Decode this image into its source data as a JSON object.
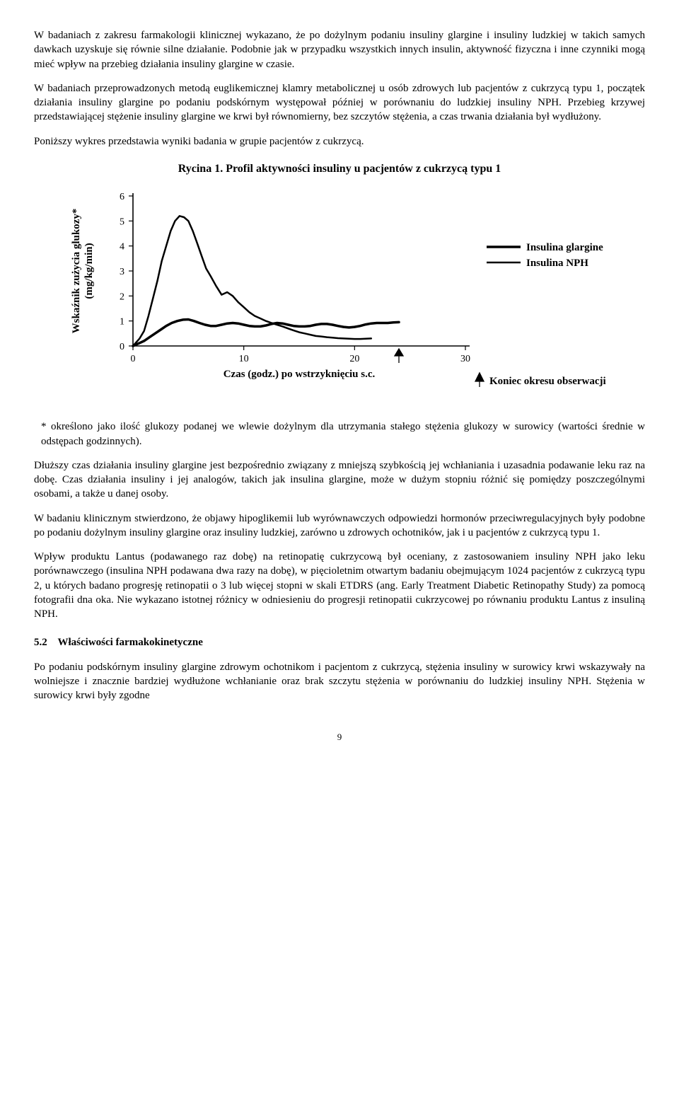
{
  "paragraphs": {
    "p1": "W badaniach z zakresu farmakologii klinicznej wykazano, że po dożylnym podaniu insuliny glargine i insuliny ludzkiej w takich samych dawkach uzyskuje się równie silne działanie. Podobnie jak w przypadku wszystkich innych insulin, aktywność fizyczna i inne czynniki mogą mieć wpływ na przebieg działania insuliny glargine w czasie.",
    "p2": "W badaniach przeprowadzonych metodą euglikemicznej klamry metabolicznej u osób zdrowych lub pacjentów z cukrzycą typu 1, początek działania insuliny glargine po podaniu podskórnym występował później w porównaniu do ludzkiej insuliny NPH. Przebieg krzywej przedstawiającej stężenie insuliny glargine we krwi był równomierny, bez szczytów stężenia, a czas trwania działania był wydłużony.",
    "p3": "Poniższy wykres przedstawia wyniki badania w grupie pacjentów z cukrzycą.",
    "p4": "* określono jako ilość glukozy podanej we wlewie dożylnym dla utrzymania stałego stężenia glukozy w surowicy (wartości średnie w odstępach godzinnych).",
    "p5": "Dłuższy czas działania insuliny glargine jest bezpośrednio związany z mniejszą szybkością jej wchłaniania i uzasadnia podawanie leku raz na dobę. Czas działania insuliny i jej analogów, takich jak insulina glargine, może w dużym stopniu różnić się pomiędzy poszczególnymi osobami, a także u danej osoby.",
    "p6": "W badaniu klinicznym stwierdzono, że objawy hipoglikemii lub wyrównawczych odpowiedzi hormonów przeciwregulacyjnych były podobne po podaniu dożylnym insuliny glargine oraz insuliny ludzkiej, zarówno u zdrowych ochotników, jak i u pacjentów z cukrzycą typu 1.",
    "p7": "Wpływ produktu Lantus (podawanego raz dobę) na retinopatię cukrzycową był oceniany, z zastosowaniem insuliny NPH jako leku porównawczego (insulina NPH podawana dwa razy na dobę), w pięcioletnim otwartym badaniu obejmującym 1024 pacjentów z cukrzycą typu 2, u których badano progresję retinopatii o 3 lub więcej stopni w skali ETDRS (ang. Early Treatment Diabetic Retinopathy Study) za pomocą fotografii dna oka. Nie wykazano istotnej różnicy w odniesieniu do progresji retinopatii cukrzycowej po równaniu produktu Lantus z insuliną NPH.",
    "p8": "Po podaniu podskórnym insuliny glargine zdrowym ochotnikom i pacjentom z cukrzycą, stężenia insuliny w surowicy krwi wskazywały na wolniejsze i znacznie bardziej wydłużone wchłanianie oraz brak szczytu stężenia w porównaniu do ludzkiej insuliny NPH. Stężenia w surowicy krwi były zgodne"
  },
  "chart": {
    "title": "Rycina 1. Profil aktywności insuliny u pacjentów z cukrzycą typu 1",
    "type": "line",
    "y_label": "Wskaźnik zużycia glukozy*\n(mg/kg/min)",
    "x_label": "Czas (godz.) po wstrzyknięciu s.c.",
    "legend": {
      "glargine": "Insulina glargine",
      "nph": "Insulina NPH"
    },
    "footer_marker": "Koniec okresu obserwacji",
    "xlim": [
      0,
      30
    ],
    "ylim": [
      0,
      6
    ],
    "xtick_step": 10,
    "ytick_step": 1,
    "line_colors": {
      "glargine": "#000000",
      "nph": "#000000"
    },
    "line_widths": {
      "glargine": 3.5,
      "nph": 2.5
    },
    "background_color": "#ffffff",
    "axis_color": "#000000",
    "label_fontsize": 15,
    "tick_fontsize": 14,
    "legend_fontsize": 15,
    "series": {
      "nph": [
        [
          0.0,
          0.0
        ],
        [
          0.6,
          0.3
        ],
        [
          1.0,
          0.6
        ],
        [
          1.4,
          1.2
        ],
        [
          1.8,
          1.9
        ],
        [
          2.2,
          2.6
        ],
        [
          2.6,
          3.4
        ],
        [
          3.0,
          4.0
        ],
        [
          3.4,
          4.6
        ],
        [
          3.8,
          5.0
        ],
        [
          4.2,
          5.2
        ],
        [
          4.6,
          5.15
        ],
        [
          5.0,
          5.0
        ],
        [
          5.4,
          4.6
        ],
        [
          5.8,
          4.1
        ],
        [
          6.2,
          3.6
        ],
        [
          6.6,
          3.1
        ],
        [
          7.0,
          2.8
        ],
        [
          7.5,
          2.4
        ],
        [
          8.0,
          2.05
        ],
        [
          8.5,
          2.15
        ],
        [
          9.0,
          2.0
        ],
        [
          9.5,
          1.75
        ],
        [
          10.0,
          1.55
        ],
        [
          10.5,
          1.35
        ],
        [
          11.0,
          1.2
        ],
        [
          11.5,
          1.1
        ],
        [
          12.0,
          1.0
        ],
        [
          12.5,
          0.92
        ],
        [
          13.0,
          0.85
        ],
        [
          13.5,
          0.78
        ],
        [
          14.0,
          0.7
        ],
        [
          14.5,
          0.62
        ],
        [
          15.0,
          0.55
        ],
        [
          15.5,
          0.5
        ],
        [
          16.0,
          0.45
        ],
        [
          16.5,
          0.4
        ],
        [
          17.0,
          0.38
        ],
        [
          17.5,
          0.35
        ],
        [
          18.0,
          0.33
        ],
        [
          18.5,
          0.31
        ],
        [
          19.0,
          0.3
        ],
        [
          19.5,
          0.29
        ],
        [
          20.0,
          0.28
        ],
        [
          20.5,
          0.28
        ],
        [
          21.0,
          0.29
        ],
        [
          21.5,
          0.3
        ]
      ],
      "glargine": [
        [
          0.0,
          0.0
        ],
        [
          0.6,
          0.12
        ],
        [
          1.0,
          0.2
        ],
        [
          1.5,
          0.35
        ],
        [
          2.0,
          0.5
        ],
        [
          2.5,
          0.65
        ],
        [
          3.0,
          0.8
        ],
        [
          3.5,
          0.92
        ],
        [
          4.0,
          1.0
        ],
        [
          4.5,
          1.05
        ],
        [
          5.0,
          1.06
        ],
        [
          5.5,
          1.0
        ],
        [
          6.0,
          0.92
        ],
        [
          6.5,
          0.85
        ],
        [
          7.0,
          0.8
        ],
        [
          7.5,
          0.8
        ],
        [
          8.0,
          0.85
        ],
        [
          8.5,
          0.9
        ],
        [
          9.0,
          0.92
        ],
        [
          9.5,
          0.9
        ],
        [
          10.0,
          0.85
        ],
        [
          10.5,
          0.8
        ],
        [
          11.0,
          0.78
        ],
        [
          11.5,
          0.78
        ],
        [
          12.0,
          0.82
        ],
        [
          12.5,
          0.88
        ],
        [
          13.0,
          0.92
        ],
        [
          13.5,
          0.9
        ],
        [
          14.0,
          0.85
        ],
        [
          14.5,
          0.8
        ],
        [
          15.0,
          0.78
        ],
        [
          15.5,
          0.78
        ],
        [
          16.0,
          0.8
        ],
        [
          16.5,
          0.85
        ],
        [
          17.0,
          0.88
        ],
        [
          17.5,
          0.88
        ],
        [
          18.0,
          0.85
        ],
        [
          18.5,
          0.8
        ],
        [
          19.0,
          0.76
        ],
        [
          19.5,
          0.74
        ],
        [
          20.0,
          0.76
        ],
        [
          20.5,
          0.8
        ],
        [
          21.0,
          0.86
        ],
        [
          21.5,
          0.9
        ],
        [
          22.0,
          0.92
        ],
        [
          22.5,
          0.92
        ],
        [
          23.0,
          0.92
        ],
        [
          23.5,
          0.94
        ],
        [
          24.0,
          0.95
        ]
      ]
    },
    "marker_x": 24
  },
  "section": {
    "num": "5.2",
    "title": "Właściwości farmakokinetyczne"
  },
  "page_number": "9"
}
